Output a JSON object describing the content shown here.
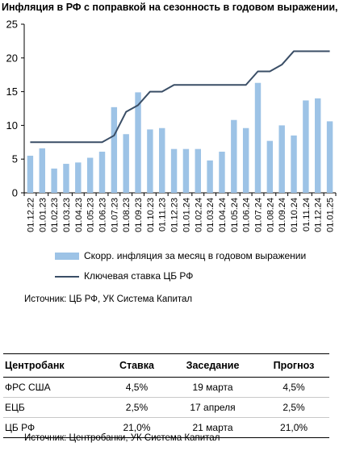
{
  "chart_data": {
    "type": "bar",
    "title": "Инфляция в РФ с поправкой на сезонность в годовом выражении, %",
    "categories": [
      "01.12.22",
      "01.01.23",
      "01.02.23",
      "01.03.23",
      "01.04.23",
      "01.05.23",
      "01.06.23",
      "01.07.23",
      "01.08.23",
      "01.09.23",
      "01.10.23",
      "01.11.23",
      "01.12.23",
      "01.01.24",
      "01.02.24",
      "01.03.24",
      "01.04.24",
      "01.05.24",
      "01.06.24",
      "01.07.24",
      "01.08.24",
      "01.09.24",
      "01.10.24",
      "01.11.24",
      "01.12.24",
      "01.01.25"
    ],
    "series": [
      {
        "name": "Скорр. инфляция за месяц в годовом выражении",
        "type": "bar",
        "values": [
          5.5,
          6.6,
          3.6,
          4.3,
          4.5,
          5.2,
          6.1,
          12.7,
          8.7,
          14.9,
          9.4,
          9.6,
          6.5,
          6.5,
          6.5,
          4.8,
          6.1,
          10.8,
          9.6,
          16.3,
          7.7,
          10.0,
          8.5,
          13.7,
          14.0,
          10.6
        ]
      },
      {
        "name": "Ключевая ставка ЦБ РФ",
        "type": "line",
        "values": [
          7.5,
          7.5,
          7.5,
          7.5,
          7.5,
          7.5,
          7.5,
          8.5,
          12,
          13,
          15,
          15,
          16,
          16,
          16,
          16,
          16,
          16,
          16,
          18,
          18,
          19,
          21,
          21,
          21,
          21
        ]
      }
    ],
    "ylim": [
      0,
      25
    ],
    "yticks": [
      0,
      5,
      10,
      15,
      20,
      25
    ],
    "grid": false,
    "legend_position": "bottom",
    "colors": {
      "bar": "#9dc3e6",
      "line": "#3a4e66"
    }
  },
  "source1": "Источник: ЦБ РФ, УК Система Капитал",
  "table": {
    "headers": [
      "Центробанк",
      "Ставка",
      "Заседание",
      "Прогноз"
    ],
    "rows": [
      [
        "ФРС США",
        "4,5%",
        "19 марта",
        "4,5%"
      ],
      [
        "ЕЦБ",
        "2,5%",
        "17 апреля",
        "2,5%"
      ],
      [
        "ЦБ РФ",
        "21,0%",
        "21 марта",
        "21,0%"
      ]
    ]
  },
  "source2": "Источник: Центробанки, УК Система Капитал"
}
